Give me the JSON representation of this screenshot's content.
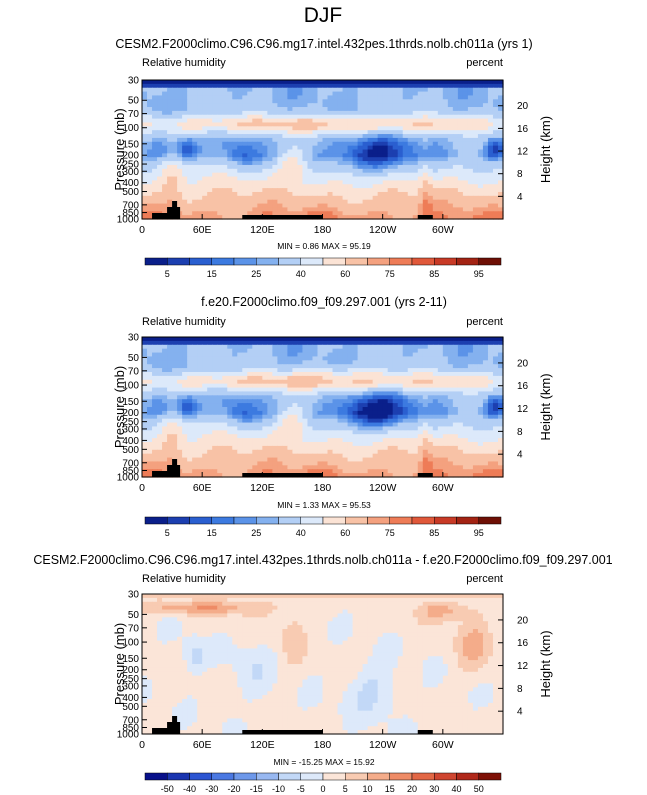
{
  "figure_title": "DJF",
  "chart_data": [
    {
      "type": "heatmap",
      "title": "CESM2.F2000climo.C96.C96.mg17.intel.432pes.1thrds.nolb.ch011a (yrs 1)",
      "variable": "Relative humidity",
      "units": "percent",
      "ylabel": "Pressure (mb)",
      "ylabel_right": "Height (km)",
      "x_ticks": [
        "0",
        "60E",
        "120E",
        "180",
        "120W",
        "60W"
      ],
      "y_ticks": [
        "30",
        "50",
        "70",
        "100",
        "150",
        "200",
        "250",
        "300",
        "400",
        "500",
        "700",
        "850",
        "1000"
      ],
      "y_ticks_right": [
        "20",
        "16",
        "12",
        "8",
        "4"
      ],
      "stats": "MIN =   0.86  MAX =  95.19",
      "colorbar_levels": [
        0,
        5,
        10,
        15,
        20,
        25,
        30,
        40,
        50,
        60,
        70,
        75,
        80,
        85,
        90,
        95
      ],
      "colorbar_labels": [
        "5",
        "15",
        "25",
        "40",
        "60",
        "75",
        "85",
        "95"
      ],
      "colorbar_colors": [
        "#0a1f8a",
        "#1c3fb0",
        "#2a5fd0",
        "#3c7ae0",
        "#5b93e8",
        "#84b1ef",
        "#b3cff5",
        "#dce9fa",
        "#fbe3d5",
        "#f8c2a6",
        "#f4a17f",
        "#ee7c57",
        "#e0583a",
        "#c83a26",
        "#a32313",
        "#6e0f05"
      ]
    },
    {
      "type": "heatmap",
      "title": "f.e20.F2000climo.f09_f09.297.001 (yrs 2-11)",
      "variable": "Relative humidity",
      "units": "percent",
      "ylabel": "Pressure (mb)",
      "ylabel_right": "Height (km)",
      "x_ticks": [
        "0",
        "60E",
        "120E",
        "180",
        "120W",
        "60W"
      ],
      "y_ticks": [
        "30",
        "50",
        "70",
        "100",
        "150",
        "200",
        "250",
        "300",
        "400",
        "500",
        "700",
        "850",
        "1000"
      ],
      "y_ticks_right": [
        "20",
        "16",
        "12",
        "8",
        "4"
      ],
      "stats": "MIN =   1.33  MAX =  95.53",
      "colorbar_levels": [
        0,
        5,
        10,
        15,
        20,
        25,
        30,
        40,
        50,
        60,
        70,
        75,
        80,
        85,
        90,
        95
      ],
      "colorbar_labels": [
        "5",
        "15",
        "25",
        "40",
        "60",
        "75",
        "85",
        "95"
      ],
      "colorbar_colors": [
        "#0a1f8a",
        "#1c3fb0",
        "#2a5fd0",
        "#3c7ae0",
        "#5b93e8",
        "#84b1ef",
        "#b3cff5",
        "#dce9fa",
        "#fbe3d5",
        "#f8c2a6",
        "#f4a17f",
        "#ee7c57",
        "#e0583a",
        "#c83a26",
        "#a32313",
        "#6e0f05"
      ]
    },
    {
      "type": "heatmap",
      "title": "CESM2.F2000climo.C96.C96.mg17.intel.432pes.1thrds.nolb.ch011a - f.e20.F2000climo.f09_f09.297.001",
      "variable": "Relative humidity",
      "units": "percent",
      "ylabel": "Pressure (mb)",
      "ylabel_right": "Height (km)",
      "x_ticks": [
        "0",
        "60E",
        "120E",
        "180",
        "120W",
        "60W"
      ],
      "y_ticks": [
        "30",
        "50",
        "70",
        "100",
        "150",
        "200",
        "250",
        "300",
        "400",
        "500",
        "700",
        "850",
        "1000"
      ],
      "y_ticks_right": [
        "20",
        "16",
        "12",
        "8",
        "4"
      ],
      "stats": "MIN = -15.25  MAX =  15.92",
      "colorbar_levels": [
        -60,
        -50,
        -40,
        -30,
        -20,
        -15,
        -10,
        -5,
        0,
        5,
        10,
        15,
        20,
        30,
        40,
        50,
        60
      ],
      "colorbar_labels": [
        "-50",
        "-40",
        "-30",
        "-20",
        "-15",
        "-10",
        "-5",
        "0",
        "5",
        "10",
        "15",
        "20",
        "30",
        "40",
        "50"
      ],
      "colorbar_colors": [
        "#08108a",
        "#1a35b0",
        "#2c55d2",
        "#4a78e2",
        "#6d98ea",
        "#98b8f1",
        "#c2d8f7",
        "#dde9fa",
        "#fbe5d8",
        "#f8cbb2",
        "#f4ac8a",
        "#ee8b66",
        "#e26745",
        "#cf4530",
        "#b0281a",
        "#7e1006"
      ]
    }
  ]
}
